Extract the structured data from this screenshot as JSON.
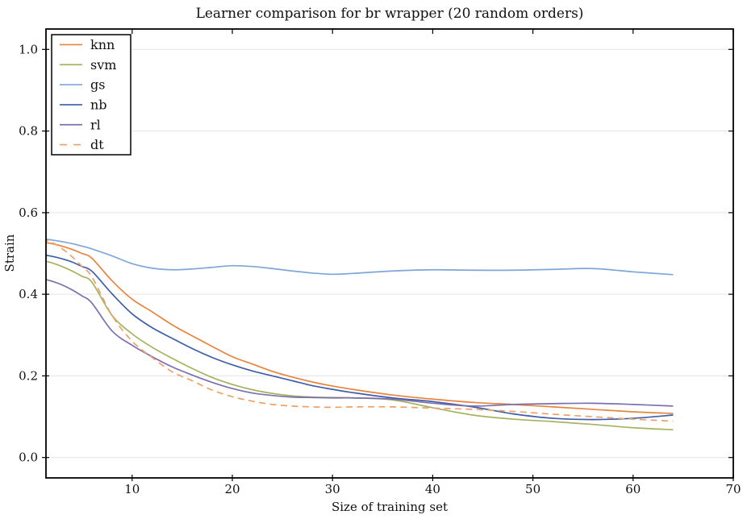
{
  "chart_data": {
    "type": "line",
    "title": "Learner comparison for br wrapper (20 random orders)",
    "xlabel": "Size of training set",
    "ylabel": "Strain",
    "xlim": [
      1.4,
      70
    ],
    "ylim": [
      -0.05,
      1.05
    ],
    "xticks": [
      10,
      20,
      30,
      40,
      50,
      60,
      70
    ],
    "xtick_labels": [
      "10",
      "20",
      "30",
      "40",
      "50",
      "60",
      "70"
    ],
    "yticks": [
      0.0,
      0.2,
      0.4,
      0.6,
      0.8,
      1.0
    ],
    "ytick_labels": [
      "0.0",
      "0.2",
      "0.4",
      "0.6",
      "0.8",
      "1.0"
    ],
    "grid": "horizontal-only",
    "grid_color": "#e3e3e3",
    "legend_position": "upper-left",
    "x": [
      1,
      2,
      3,
      4,
      5,
      6,
      8,
      10,
      12,
      14,
      16,
      18,
      20,
      22,
      24,
      26,
      28,
      30,
      32,
      36,
      40,
      44,
      48,
      52,
      56,
      60,
      64
    ],
    "series": [
      {
        "name": "knn",
        "color": "#e8843e",
        "style": "solid",
        "values": [
          0.528,
          0.524,
          0.518,
          0.51,
          0.5,
          0.488,
          0.433,
          0.388,
          0.357,
          0.325,
          0.298,
          0.272,
          0.247,
          0.229,
          0.211,
          0.197,
          0.185,
          0.175,
          0.167,
          0.153,
          0.143,
          0.135,
          0.13,
          0.124,
          0.118,
          0.112,
          0.108
        ]
      },
      {
        "name": "svm",
        "color": "#a7b25f",
        "style": "solid",
        "values": [
          0.483,
          0.477,
          0.468,
          0.457,
          0.444,
          0.429,
          0.348,
          0.303,
          0.27,
          0.243,
          0.218,
          0.196,
          0.179,
          0.166,
          0.157,
          0.151,
          0.148,
          0.147,
          0.146,
          0.141,
          0.122,
          0.104,
          0.094,
          0.088,
          0.081,
          0.073,
          0.068
        ]
      },
      {
        "name": "gs",
        "color": "#7ea6d8",
        "style": "solid",
        "values": [
          0.536,
          0.533,
          0.529,
          0.524,
          0.518,
          0.511,
          0.494,
          0.475,
          0.464,
          0.46,
          0.462,
          0.466,
          0.47,
          0.468,
          0.463,
          0.457,
          0.452,
          0.449,
          0.451,
          0.457,
          0.46,
          0.459,
          0.459,
          0.461,
          0.463,
          0.455,
          0.448
        ]
      },
      {
        "name": "nb",
        "color": "#3d5fa9",
        "style": "solid",
        "values": [
          0.497,
          0.493,
          0.487,
          0.479,
          0.468,
          0.456,
          0.401,
          0.352,
          0.318,
          0.292,
          0.267,
          0.245,
          0.227,
          0.212,
          0.2,
          0.188,
          0.176,
          0.167,
          0.159,
          0.146,
          0.137,
          0.124,
          0.107,
          0.096,
          0.093,
          0.096,
          0.104
        ]
      },
      {
        "name": "rl",
        "color": "#7b6fb0",
        "style": "solid",
        "values": [
          0.438,
          0.432,
          0.423,
          0.411,
          0.396,
          0.378,
          0.31,
          0.275,
          0.247,
          0.222,
          0.202,
          0.184,
          0.169,
          0.158,
          0.152,
          0.148,
          0.147,
          0.146,
          0.146,
          0.143,
          0.133,
          0.126,
          0.13,
          0.132,
          0.133,
          0.13,
          0.126
        ]
      },
      {
        "name": "dt",
        "color": "#f0a066",
        "style": "dashed",
        "values": [
          0.535,
          0.527,
          0.512,
          0.492,
          0.468,
          0.442,
          0.348,
          0.285,
          0.245,
          0.21,
          0.188,
          0.165,
          0.149,
          0.138,
          0.13,
          0.126,
          0.124,
          0.123,
          0.124,
          0.124,
          0.121,
          0.118,
          0.113,
          0.106,
          0.1,
          0.094,
          0.089
        ]
      }
    ]
  },
  "axes": {
    "spine_color": "#000000",
    "tick_color": "#000000",
    "text_color": "#111111",
    "background": "#ffffff"
  }
}
